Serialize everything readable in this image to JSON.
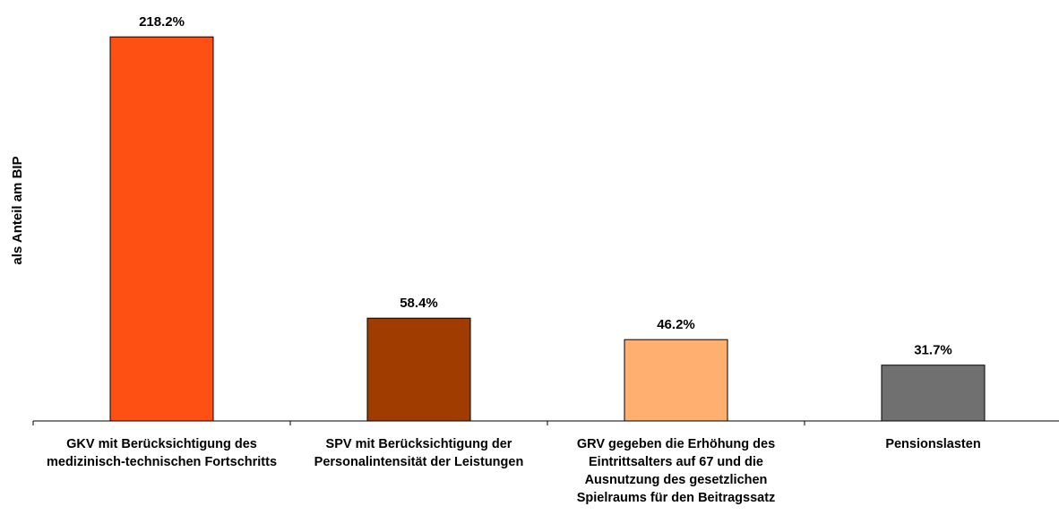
{
  "chart_data": {
    "type": "bar",
    "y_label": "als Anteil am BIP",
    "categories": [
      "GKV mit Berücksichtigung des medizinisch-technischen Fortschritts",
      "SPV mit Berücksichtigung der Personalintensität der Leistungen",
      "GRV gegeben die Erhöhung des Eintrittsalters auf 67 und die Ausnutzung des gesetzlichen Spielraums für den Beitragssatz",
      "Pensionslasten"
    ],
    "values": [
      218.2,
      58.4,
      46.2,
      31.7
    ],
    "value_labels": [
      "218.2%",
      "58.4%",
      "46.2%",
      "31.7%"
    ],
    "colors": [
      "#ff5014",
      "#a03c00",
      "#ffb070",
      "#707070"
    ],
    "ylim": [
      0,
      230
    ]
  }
}
